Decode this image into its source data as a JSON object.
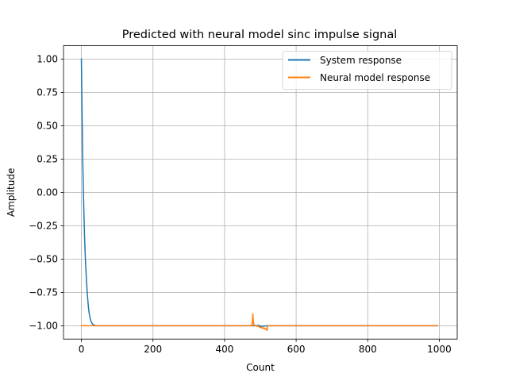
{
  "chart_data": {
    "type": "line",
    "title": "Predicted with neural model sinc impulse signal",
    "xlabel": "Count",
    "ylabel": "Amplitude",
    "xlim": [
      -50,
      1050
    ],
    "ylim": [
      -1.1,
      1.1
    ],
    "xticks": [
      0,
      200,
      400,
      600,
      800,
      1000
    ],
    "yticks": [
      -1.0,
      -0.75,
      -0.5,
      -0.25,
      0.0,
      0.25,
      0.5,
      0.75,
      1.0
    ],
    "xtick_labels": [
      "0",
      "200",
      "400",
      "600",
      "800",
      "1000"
    ],
    "ytick_labels": [
      "−1.00",
      "−0.75",
      "−0.50",
      "−0.25",
      "0.00",
      "0.25",
      "0.50",
      "0.75",
      "1.00"
    ],
    "grid": true,
    "legend_position": "top-right",
    "series": [
      {
        "name": "System response",
        "color": "#1f77b4",
        "points": [
          [
            0,
            1.0
          ],
          [
            1,
            0.78
          ],
          [
            2,
            0.57
          ],
          [
            3,
            0.38
          ],
          [
            4,
            0.22
          ],
          [
            5,
            0.08
          ],
          [
            6,
            -0.04
          ],
          [
            7,
            -0.15
          ],
          [
            8,
            -0.25
          ],
          [
            9,
            -0.34
          ],
          [
            10,
            -0.42
          ],
          [
            12,
            -0.55
          ],
          [
            14,
            -0.65
          ],
          [
            16,
            -0.74
          ],
          [
            18,
            -0.81
          ],
          [
            20,
            -0.87
          ],
          [
            22,
            -0.91
          ],
          [
            25,
            -0.95
          ],
          [
            28,
            -0.975
          ],
          [
            32,
            -0.99
          ],
          [
            40,
            -1.0
          ],
          [
            470,
            -1.0
          ],
          [
            478,
            -1.0
          ],
          [
            490,
            -1.0
          ],
          [
            495,
            -0.995
          ],
          [
            500,
            -1.005
          ],
          [
            520,
            -1.0
          ],
          [
            995,
            -1.0
          ]
        ]
      },
      {
        "name": "Neural model response",
        "color": "#ff7f0e",
        "points": [
          [
            0,
            -1.0
          ],
          [
            474,
            -1.0
          ],
          [
            476,
            -0.99
          ],
          [
            477,
            -1.0
          ],
          [
            478,
            -0.96
          ],
          [
            479,
            -0.91
          ],
          [
            480,
            -0.95
          ],
          [
            481,
            -0.98
          ],
          [
            483,
            -0.995
          ],
          [
            486,
            -1.0
          ],
          [
            490,
            -1.005
          ],
          [
            494,
            -1.0
          ],
          [
            497,
            -1.01
          ],
          [
            500,
            -1.015
          ],
          [
            503,
            -1.01
          ],
          [
            506,
            -1.02
          ],
          [
            509,
            -1.015
          ],
          [
            512,
            -1.025
          ],
          [
            515,
            -1.02
          ],
          [
            518,
            -1.035
          ],
          [
            519,
            -1.03
          ],
          [
            520,
            -1.005
          ],
          [
            522,
            -1.0
          ],
          [
            995,
            -1.0
          ]
        ]
      }
    ]
  }
}
